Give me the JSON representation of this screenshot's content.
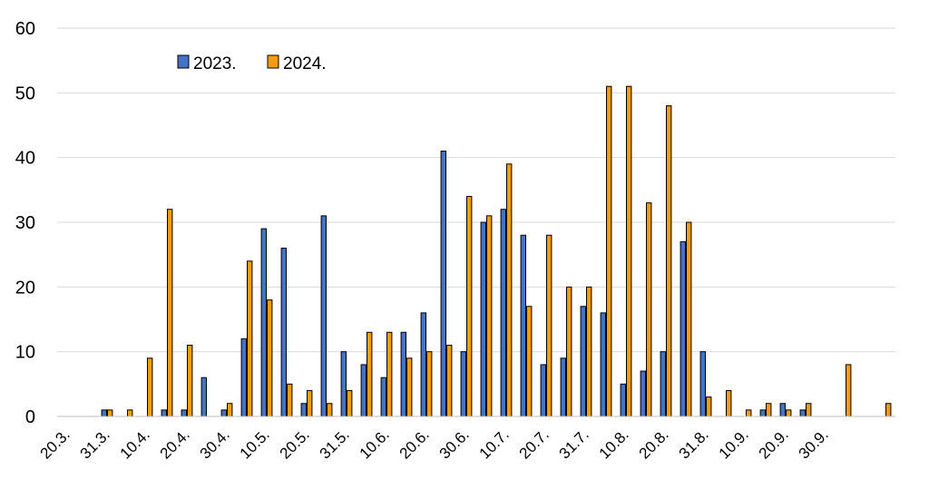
{
  "chart_data": {
    "type": "bar",
    "title": "",
    "xlabel": "",
    "ylabel": "",
    "ylim": [
      0,
      60
    ],
    "yticks": [
      0,
      10,
      20,
      30,
      40,
      50,
      60
    ],
    "grid": true,
    "legend_position": "top-left",
    "x_tick_labels": [
      "20.3.",
      "31.3.",
      "10.4.",
      "20.4.",
      "30.4.",
      "10.5.",
      "20.5.",
      "31.5.",
      "10.6.",
      "20.6.",
      "30.6.",
      "10.7.",
      "20.7.",
      "31.7.",
      "10.8.",
      "20.8.",
      "31.8.",
      "10.9.",
      "20.9.",
      "30.9."
    ],
    "periods": 42,
    "series": [
      {
        "name": "2023.",
        "color": "#4472C4",
        "values": [
          0,
          0,
          1,
          0,
          0,
          1,
          1,
          6,
          1,
          12,
          29,
          26,
          2,
          31,
          10,
          8,
          6,
          13,
          16,
          41,
          10,
          30,
          32,
          28,
          8,
          9,
          17,
          16,
          5,
          7,
          10,
          27,
          10,
          0,
          0,
          1,
          2,
          1,
          0,
          0,
          0,
          0
        ]
      },
      {
        "name": "2024.",
        "color": "#F39C12",
        "values": [
          0,
          0,
          1,
          1,
          9,
          32,
          11,
          0,
          2,
          24,
          18,
          5,
          4,
          2,
          4,
          13,
          13,
          9,
          10,
          11,
          34,
          31,
          39,
          17,
          28,
          20,
          20,
          51,
          51,
          33,
          48,
          30,
          3,
          4,
          1,
          2,
          1,
          2,
          0,
          8,
          0,
          2
        ]
      }
    ]
  }
}
